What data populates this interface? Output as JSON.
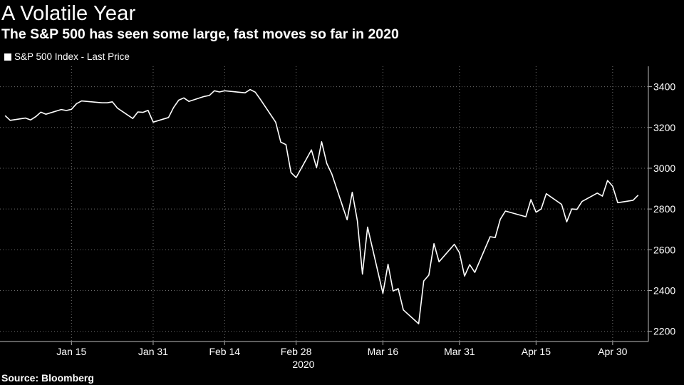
{
  "title": "A Volatile Year",
  "subtitle": "The S&P 500 has seen some large, fast moves so far in 2020",
  "source": "Source: Bloomberg",
  "colors": {
    "background": "#000000",
    "line": "#ffffff",
    "grid": "#6e6e6e"
  },
  "chart_data": {
    "type": "line",
    "legend_position": "top-left",
    "grid": true,
    "year_label": "2020",
    "xlabel": "",
    "ylabel": "",
    "ylim": [
      2150,
      3500
    ],
    "y_ticks": [
      2200,
      2400,
      2600,
      2800,
      3000,
      3200,
      3400
    ],
    "x_ticks": [
      "Jan 15",
      "Jan 31",
      "Feb 14",
      "Feb 28",
      "Mar 16",
      "Mar 31",
      "Apr 15",
      "Apr 30"
    ],
    "series": [
      {
        "name": "S&P 500 Index - Last Price",
        "x": [
          "2020-01-02",
          "2020-01-03",
          "2020-01-06",
          "2020-01-07",
          "2020-01-08",
          "2020-01-09",
          "2020-01-10",
          "2020-01-13",
          "2020-01-14",
          "2020-01-15",
          "2020-01-16",
          "2020-01-17",
          "2020-01-21",
          "2020-01-22",
          "2020-01-23",
          "2020-01-24",
          "2020-01-27",
          "2020-01-28",
          "2020-01-29",
          "2020-01-30",
          "2020-01-31",
          "2020-02-03",
          "2020-02-04",
          "2020-02-05",
          "2020-02-06",
          "2020-02-07",
          "2020-02-10",
          "2020-02-11",
          "2020-02-12",
          "2020-02-13",
          "2020-02-14",
          "2020-02-18",
          "2020-02-19",
          "2020-02-20",
          "2020-02-21",
          "2020-02-24",
          "2020-02-25",
          "2020-02-26",
          "2020-02-27",
          "2020-02-28",
          "2020-03-02",
          "2020-03-03",
          "2020-03-04",
          "2020-03-05",
          "2020-03-06",
          "2020-03-09",
          "2020-03-10",
          "2020-03-11",
          "2020-03-12",
          "2020-03-13",
          "2020-03-16",
          "2020-03-17",
          "2020-03-18",
          "2020-03-19",
          "2020-03-20",
          "2020-03-23",
          "2020-03-24",
          "2020-03-25",
          "2020-03-26",
          "2020-03-27",
          "2020-03-30",
          "2020-03-31",
          "2020-04-01",
          "2020-04-02",
          "2020-04-03",
          "2020-04-06",
          "2020-04-07",
          "2020-04-08",
          "2020-04-09",
          "2020-04-13",
          "2020-04-14",
          "2020-04-15",
          "2020-04-16",
          "2020-04-17",
          "2020-04-20",
          "2020-04-21",
          "2020-04-22",
          "2020-04-23",
          "2020-04-24",
          "2020-04-27",
          "2020-04-28",
          "2020-04-29",
          "2020-04-30",
          "2020-05-01",
          "2020-05-04",
          "2020-05-05"
        ],
        "values": [
          3258,
          3235,
          3246,
          3237,
          3253,
          3275,
          3265,
          3288,
          3283,
          3289,
          3317,
          3330,
          3321,
          3321,
          3326,
          3295,
          3244,
          3276,
          3274,
          3284,
          3226,
          3249,
          3298,
          3334,
          3345,
          3328,
          3352,
          3357,
          3380,
          3374,
          3380,
          3370,
          3386,
          3373,
          3338,
          3226,
          3128,
          3116,
          2979,
          2954,
          3090,
          3003,
          3130,
          3024,
          2972,
          2747,
          2882,
          2741,
          2481,
          2711,
          2386,
          2529,
          2398,
          2409,
          2305,
          2237,
          2447,
          2476,
          2630,
          2541,
          2627,
          2585,
          2471,
          2527,
          2489,
          2664,
          2660,
          2750,
          2790,
          2762,
          2846,
          2784,
          2800,
          2875,
          2823,
          2737,
          2800,
          2798,
          2837,
          2878,
          2863,
          2940,
          2912,
          2831,
          2843,
          2868
        ]
      }
    ]
  }
}
